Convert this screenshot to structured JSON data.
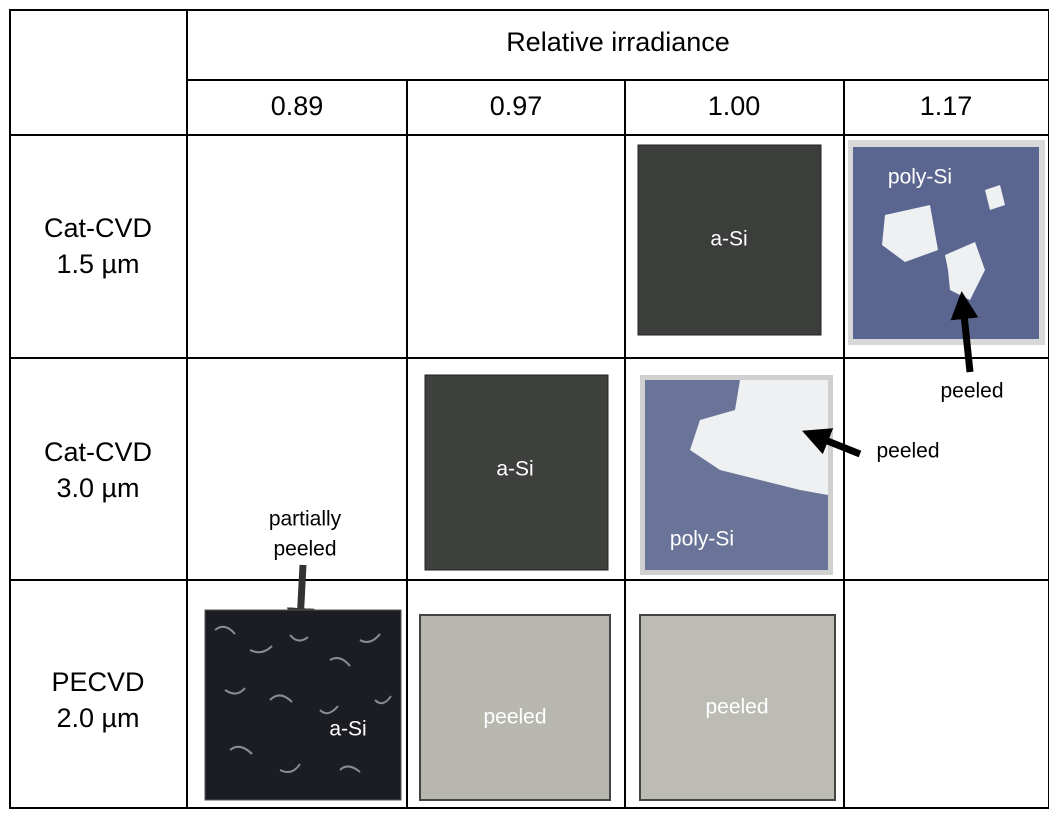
{
  "header": {
    "title": "Relative irradiance",
    "columns": [
      "0.89",
      "0.97",
      "1.00",
      "1.17"
    ]
  },
  "rows": [
    {
      "label": [
        "Cat-CVD",
        "1.5 µm"
      ],
      "cells": [
        null,
        null,
        {
          "label": "a-Si"
        },
        {
          "label": "poly-Si"
        }
      ]
    },
    {
      "label": [
        "Cat-CVD",
        "3.0 µm"
      ],
      "cells": [
        null,
        {
          "label": "a-Si"
        },
        {
          "label": "poly-Si"
        },
        null
      ]
    },
    {
      "label": [
        "PECVD",
        "2.0 µm"
      ],
      "cells": [
        {
          "label": "a-Si"
        },
        {
          "label": "peeled"
        },
        {
          "label": "peeled"
        },
        null
      ]
    }
  ],
  "annotations": [
    {
      "text": "peeled"
    },
    {
      "text": "peeled"
    },
    {
      "text": [
        "partially",
        "peeled"
      ]
    }
  ]
}
